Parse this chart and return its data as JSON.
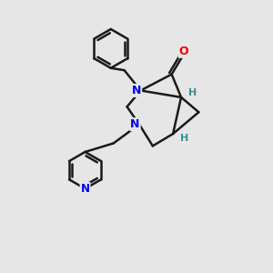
{
  "background_color": "#e6e6e6",
  "bond_color": "#1a1a1a",
  "bond_width": 1.8,
  "N_color": "#0000ee",
  "O_color": "#ee0000",
  "H_color": "#3a8f8f",
  "fig_w": 3.0,
  "fig_h": 3.0,
  "dpi": 100,
  "xlim": [
    0,
    10
  ],
  "ylim": [
    0,
    10
  ]
}
